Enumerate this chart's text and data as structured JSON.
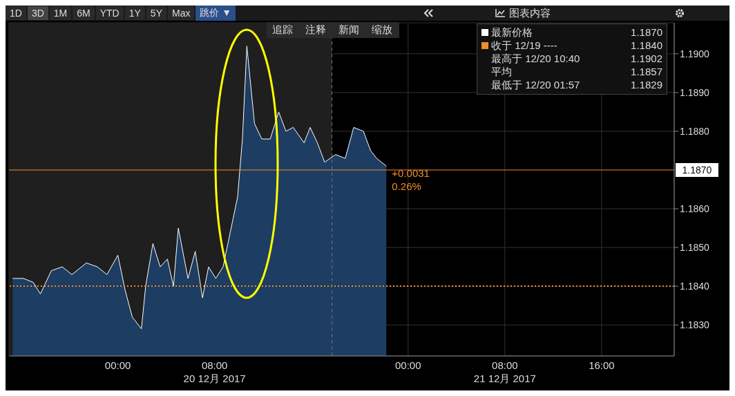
{
  "chart_data": {
    "type": "area",
    "x": [
      "2017-12-19T15:18",
      "2017-12-19T16:12",
      "2017-12-19T17:00",
      "2017-12-19T17:36",
      "2017-12-19T18:30",
      "2017-12-19T19:24",
      "2017-12-19T20:12",
      "2017-12-19T21:24",
      "2017-12-19T22:18",
      "2017-12-19T23:06",
      "2017-12-20T00:00",
      "2017-12-20T00:36",
      "2017-12-20T01:12",
      "2017-12-20T01:57",
      "2017-12-20T02:18",
      "2017-12-20T02:54",
      "2017-12-20T03:30",
      "2017-12-20T04:06",
      "2017-12-20T04:36",
      "2017-12-20T05:00",
      "2017-12-20T05:48",
      "2017-12-20T06:24",
      "2017-12-20T07:00",
      "2017-12-20T07:30",
      "2017-12-20T08:06",
      "2017-12-20T08:42",
      "2017-12-20T09:18",
      "2017-12-20T09:54",
      "2017-12-20T10:18",
      "2017-12-20T10:40",
      "2017-12-20T11:18",
      "2017-12-20T11:54",
      "2017-12-20T12:36",
      "2017-12-20T13:18",
      "2017-12-20T13:54",
      "2017-12-20T14:30",
      "2017-12-20T15:24",
      "2017-12-20T15:54",
      "2017-12-20T16:30",
      "2017-12-20T17:06",
      "2017-12-20T18:00",
      "2017-12-20T18:48",
      "2017-12-20T19:30",
      "2017-12-20T20:18",
      "2017-12-20T20:54",
      "2017-12-20T21:24",
      "2017-12-20T22:12"
    ],
    "series": [
      {
        "name": "最新价格",
        "color": "#ffffff",
        "values": [
          1.1842,
          1.1842,
          1.1841,
          1.1838,
          1.1844,
          1.1845,
          1.1843,
          1.1846,
          1.1845,
          1.1843,
          1.1848,
          1.1839,
          1.1832,
          1.1829,
          1.184,
          1.1851,
          1.1845,
          1.1847,
          1.184,
          1.1855,
          1.1842,
          1.1849,
          1.1837,
          1.1845,
          1.1842,
          1.1845,
          1.1854,
          1.1863,
          1.1878,
          1.1902,
          1.1882,
          1.1878,
          1.1878,
          1.1885,
          1.188,
          1.1881,
          1.1877,
          1.1881,
          1.1877,
          1.1872,
          1.1874,
          1.1873,
          1.1881,
          1.188,
          1.1875,
          1.1873,
          1.1871
        ]
      }
    ],
    "xlim": [
      "2017-12-19T15:00",
      "2017-12-21T22:00"
    ],
    "xticks": [
      {
        "value": "2017-12-20T00:00",
        "label": "00:00"
      },
      {
        "value": "2017-12-20T08:00",
        "label": "08:00"
      },
      {
        "value": "2017-12-21T00:00",
        "label": "00:00"
      },
      {
        "value": "2017-12-21T08:00",
        "label": "08:00"
      },
      {
        "value": "2017-12-21T16:00",
        "label": "16:00"
      }
    ],
    "ylim": [
      1.1822,
      1.1908
    ],
    "yticks": [
      {
        "value": 1.183,
        "label": "1.1830"
      },
      {
        "value": 1.184,
        "label": "1.1840"
      },
      {
        "value": 1.185,
        "label": "1.1850"
      },
      {
        "value": 1.186,
        "label": "1.1860"
      },
      {
        "value": 1.188,
        "label": "1.1880"
      },
      {
        "value": 1.189,
        "label": "1.1890"
      },
      {
        "value": 1.19,
        "label": "1.1900"
      }
    ],
    "grid": true,
    "legend": "top right",
    "ref_lines": [
      {
        "axis": "y",
        "value": 1.184,
        "color": "#f28c28",
        "line_style": "dotted"
      },
      {
        "axis": "y",
        "value": 1.187,
        "label": "1.1870",
        "color": "#f28c28",
        "line_style": "solid"
      },
      {
        "axis": "x",
        "value": "2017-12-20T17:42",
        "color": "#777777",
        "line_style": "dashed"
      }
    ],
    "bands": [
      {
        "axis": "x",
        "from": "2017-12-19T15:00",
        "to": "2017-12-20T17:42",
        "color": "#1f1f1f"
      }
    ],
    "annotations": [
      "1D",
      "3D",
      "1M",
      "6M",
      "YTD",
      "1Y",
      "5Y",
      "Max",
      "跳价 ▼",
      "图表内容",
      "追踪",
      "注释",
      "新闻",
      "缩放",
      "1.1870",
      "收于 12/19 ----",
      "1.1840",
      "最高于 12/20 10:40",
      "1.1902",
      "平均",
      "1.1857",
      "最低于 12/20 01:57",
      "1.1829",
      "20 12月 2017",
      "21 12月 2017",
      {
        "text": "+0.0031",
        "x": "2017-12-20T22:12",
        "y": 1.1871
      },
      {
        "text": "0.26%",
        "x": "2017-12-20T22:12",
        "y": 1.1871
      }
    ]
  }
}
